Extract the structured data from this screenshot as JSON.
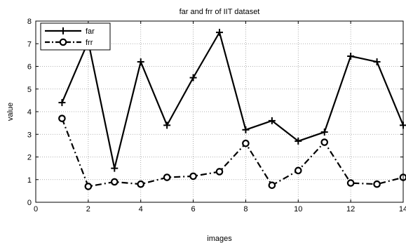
{
  "chart_data": {
    "type": "line",
    "title": "far and frr of IIT dataset",
    "xlabel": "images",
    "ylabel": "value",
    "xlim": [
      0,
      14
    ],
    "ylim": [
      0,
      8
    ],
    "xticks": [
      "0",
      "2",
      "4",
      "6",
      "8",
      "10",
      "12",
      "14"
    ],
    "yticks": [
      "0",
      "1",
      "2",
      "3",
      "4",
      "5",
      "6",
      "7",
      "8"
    ],
    "grid": true,
    "legend_position": "top-left",
    "x": [
      1,
      2,
      3,
      4,
      5,
      6,
      7,
      8,
      9,
      10,
      11,
      12,
      13,
      14
    ],
    "series": [
      {
        "name": "far",
        "values": [
          4.4,
          7.1,
          1.5,
          6.2,
          3.4,
          5.5,
          7.5,
          3.2,
          3.6,
          2.7,
          3.1,
          6.45,
          6.2,
          3.4
        ],
        "color": "#000000",
        "line_style": "solid",
        "marker": "plus"
      },
      {
        "name": "frr",
        "values": [
          3.7,
          0.7,
          0.9,
          0.8,
          1.1,
          1.15,
          1.35,
          2.6,
          0.75,
          1.4,
          2.65,
          0.85,
          0.8,
          1.1
        ],
        "color": "#000000",
        "line_style": "dash-dot",
        "marker": "circle"
      }
    ]
  }
}
